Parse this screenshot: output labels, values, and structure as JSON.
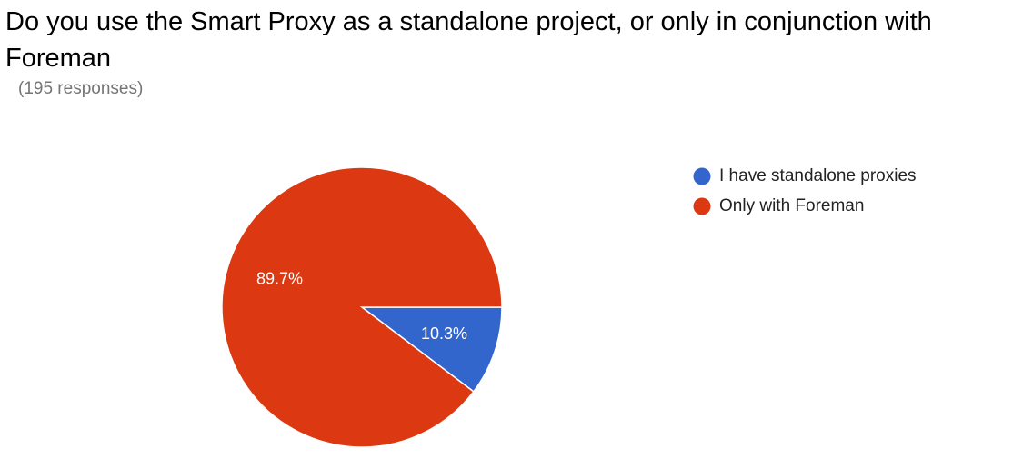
{
  "chart_data": {
    "type": "pie",
    "title": "Do you use the Smart Proxy as a standalone project, or only in conjunction with Foreman",
    "subtitle": "(195 responses)",
    "categories": [
      "I have standalone proxies",
      "Only with Foreman"
    ],
    "values": [
      10.3,
      89.7
    ],
    "value_labels": [
      "10.3%",
      "89.7%"
    ],
    "colors": [
      "#3366cc",
      "#dc3912"
    ],
    "legend": "right"
  }
}
